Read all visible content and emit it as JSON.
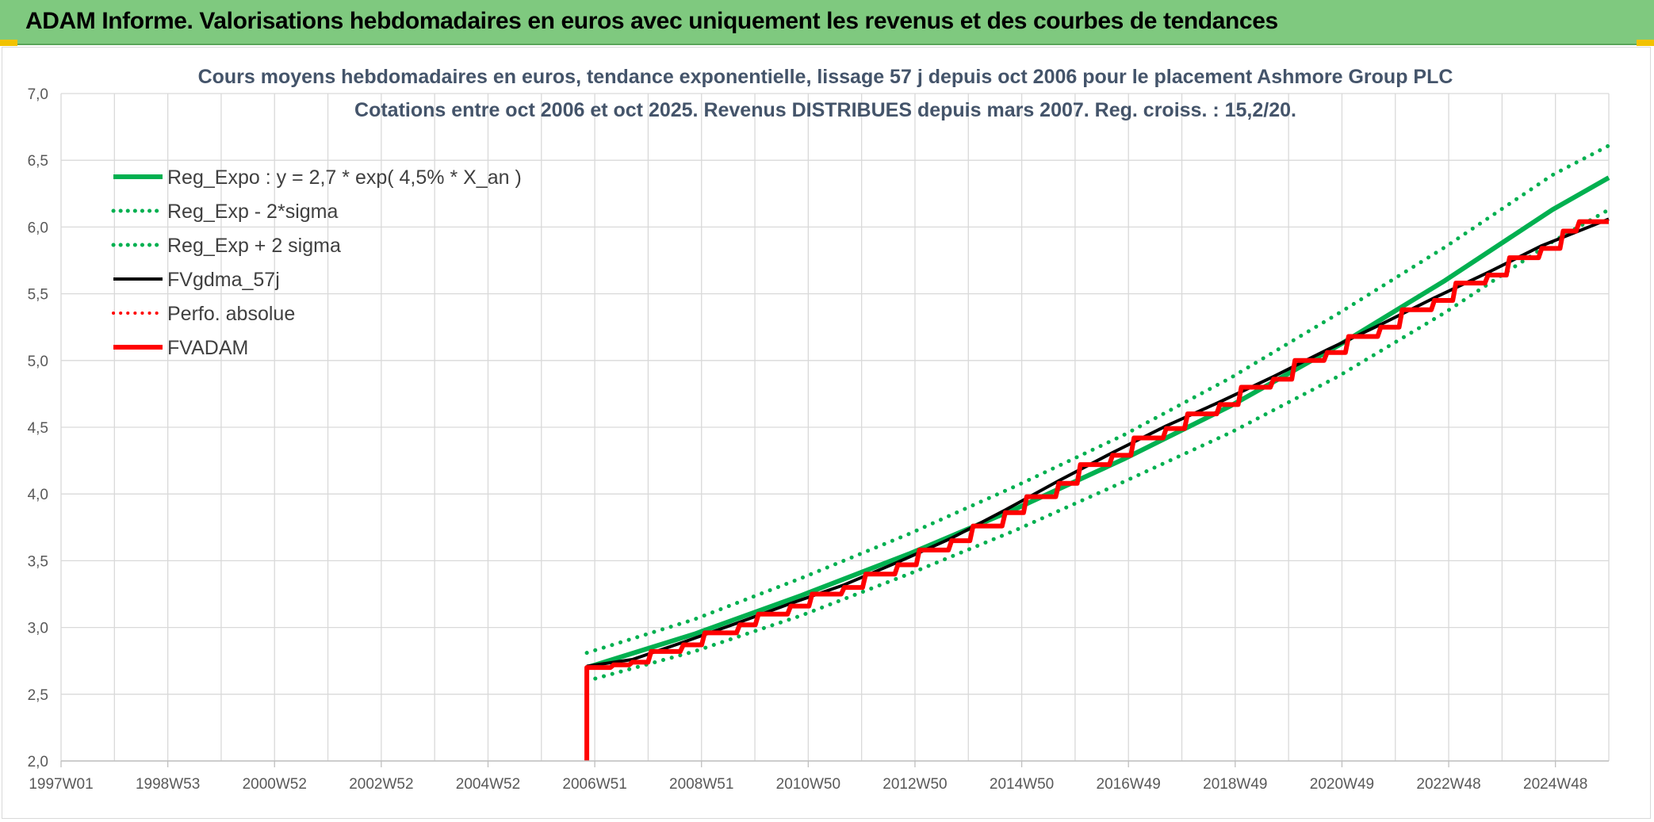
{
  "banner": {
    "title": "ADAM Informe. Valorisations hebdomadaires en euros avec uniquement les revenus et des courbes de tendances",
    "background": "#7fc97f"
  },
  "chart_data": {
    "type": "line",
    "title": "Cours moyens hebdomadaires en euros, tendance exponentielle, lissage 57 j depuis oct 2006 pour le placement Ashmore Group PLC",
    "subtitle": "Cotations entre oct 2006 et oct 2025. Revenus DISTRIBUES depuis mars 2007. Reg. croiss. : 15,2/20.",
    "xlabel": "",
    "ylabel": "",
    "x_tick_labels": [
      "1997W01",
      "1998W53",
      "2000W52",
      "2002W52",
      "2004W52",
      "2006W51",
      "2008W51",
      "2010W50",
      "2012W50",
      "2014W50",
      "2016W49",
      "2018W49",
      "2020W49",
      "2022W48",
      "2024W48"
    ],
    "xlim_years": [
      1997.0,
      2025.85
    ],
    "ylim": [
      2.0,
      7.0
    ],
    "y_ticks": [
      2.0,
      2.5,
      3.0,
      3.5,
      4.0,
      4.5,
      5.0,
      5.5,
      6.0,
      6.5,
      7.0
    ],
    "y_tick_labels": [
      "2,0",
      "2,5",
      "3,0",
      "3,5",
      "4,0",
      "4,5",
      "5,0",
      "5,5",
      "6,0",
      "6,5",
      "7,0"
    ],
    "grid": true,
    "legend_position": "top-left",
    "series": [
      {
        "name": "Reg_Expo : y = 2,7 * exp( 4,5% *  X_an )",
        "color": "#00b050",
        "style": "solid",
        "width": 6,
        "points": [
          [
            2006.8,
            2.7
          ],
          [
            2008.8,
            2.95
          ],
          [
            2010.8,
            3.24
          ],
          [
            2012.8,
            3.55
          ],
          [
            2014.8,
            3.89
          ],
          [
            2016.8,
            4.26
          ],
          [
            2018.8,
            4.66
          ],
          [
            2020.8,
            5.11
          ],
          [
            2022.8,
            5.6
          ],
          [
            2024.8,
            6.13
          ],
          [
            2025.85,
            6.37
          ]
        ]
      },
      {
        "name": "Reg_Exp - 2*sigma",
        "color": "#00b050",
        "style": "dotted",
        "width": 5,
        "points": [
          [
            2006.8,
            2.6
          ],
          [
            2008.8,
            2.82
          ],
          [
            2010.8,
            3.09
          ],
          [
            2012.8,
            3.4
          ],
          [
            2014.8,
            3.73
          ],
          [
            2016.8,
            4.09
          ],
          [
            2018.8,
            4.46
          ],
          [
            2020.8,
            4.88
          ],
          [
            2022.8,
            5.36
          ],
          [
            2024.8,
            5.89
          ],
          [
            2025.85,
            6.13
          ]
        ]
      },
      {
        "name": "Reg_Exp + 2 sigma",
        "color": "#00b050",
        "style": "dotted",
        "width": 5,
        "points": [
          [
            2006.8,
            2.81
          ],
          [
            2008.8,
            3.06
          ],
          [
            2010.8,
            3.37
          ],
          [
            2012.8,
            3.7
          ],
          [
            2014.8,
            4.06
          ],
          [
            2016.8,
            4.44
          ],
          [
            2018.8,
            4.87
          ],
          [
            2020.8,
            5.35
          ],
          [
            2022.8,
            5.85
          ],
          [
            2024.8,
            6.39
          ],
          [
            2025.85,
            6.61
          ]
        ]
      },
      {
        "name": "FVgdma_57j",
        "color": "#000000",
        "style": "solid",
        "width": 4,
        "offset": 0.02,
        "points": [
          [
            2006.8,
            2.69
          ],
          [
            2007.65,
            2.74
          ],
          [
            2008.6,
            2.87
          ],
          [
            2009.65,
            3.02
          ],
          [
            2010.6,
            3.16
          ],
          [
            2011.6,
            3.3
          ],
          [
            2012.6,
            3.47
          ],
          [
            2013.6,
            3.65
          ],
          [
            2014.6,
            3.86
          ],
          [
            2015.6,
            4.08
          ],
          [
            2016.6,
            4.29
          ],
          [
            2017.6,
            4.49
          ],
          [
            2018.6,
            4.67
          ],
          [
            2019.6,
            4.86
          ],
          [
            2020.6,
            5.06
          ],
          [
            2021.6,
            5.25
          ],
          [
            2022.6,
            5.45
          ],
          [
            2023.6,
            5.64
          ],
          [
            2024.6,
            5.84
          ],
          [
            2025.85,
            6.04
          ]
        ]
      },
      {
        "name": "Perfo. absolue",
        "color": "#ff0000",
        "style": "dotted",
        "width": 3,
        "visible_on_plot": false,
        "points": []
      },
      {
        "name": "FVADAM",
        "color": "#ff0000",
        "style": "solid",
        "width": 6,
        "step": true,
        "start_drop": [
          2006.8,
          2.0
        ],
        "points": [
          [
            2006.8,
            2.7
          ],
          [
            2007.3,
            2.72
          ],
          [
            2007.65,
            2.74
          ],
          [
            2008.0,
            2.82
          ],
          [
            2008.6,
            2.87
          ],
          [
            2009.0,
            2.96
          ],
          [
            2009.65,
            3.02
          ],
          [
            2010.0,
            3.1
          ],
          [
            2010.6,
            3.16
          ],
          [
            2011.0,
            3.25
          ],
          [
            2011.6,
            3.3
          ],
          [
            2012.0,
            3.4
          ],
          [
            2012.6,
            3.47
          ],
          [
            2013.0,
            3.58
          ],
          [
            2013.6,
            3.65
          ],
          [
            2014.0,
            3.76
          ],
          [
            2014.6,
            3.86
          ],
          [
            2015.0,
            3.98
          ],
          [
            2015.6,
            4.08
          ],
          [
            2016.0,
            4.22
          ],
          [
            2016.6,
            4.29
          ],
          [
            2017.0,
            4.42
          ],
          [
            2017.6,
            4.49
          ],
          [
            2018.0,
            4.6
          ],
          [
            2018.6,
            4.67
          ],
          [
            2019.0,
            4.8
          ],
          [
            2019.6,
            4.86
          ],
          [
            2020.0,
            5.0
          ],
          [
            2020.6,
            5.06
          ],
          [
            2021.0,
            5.18
          ],
          [
            2021.6,
            5.25
          ],
          [
            2022.0,
            5.38
          ],
          [
            2022.6,
            5.45
          ],
          [
            2023.0,
            5.58
          ],
          [
            2023.6,
            5.64
          ],
          [
            2024.0,
            5.77
          ],
          [
            2024.6,
            5.84
          ],
          [
            2025.0,
            5.97
          ],
          [
            2025.3,
            6.04
          ],
          [
            2025.85,
            6.04
          ]
        ]
      }
    ]
  }
}
